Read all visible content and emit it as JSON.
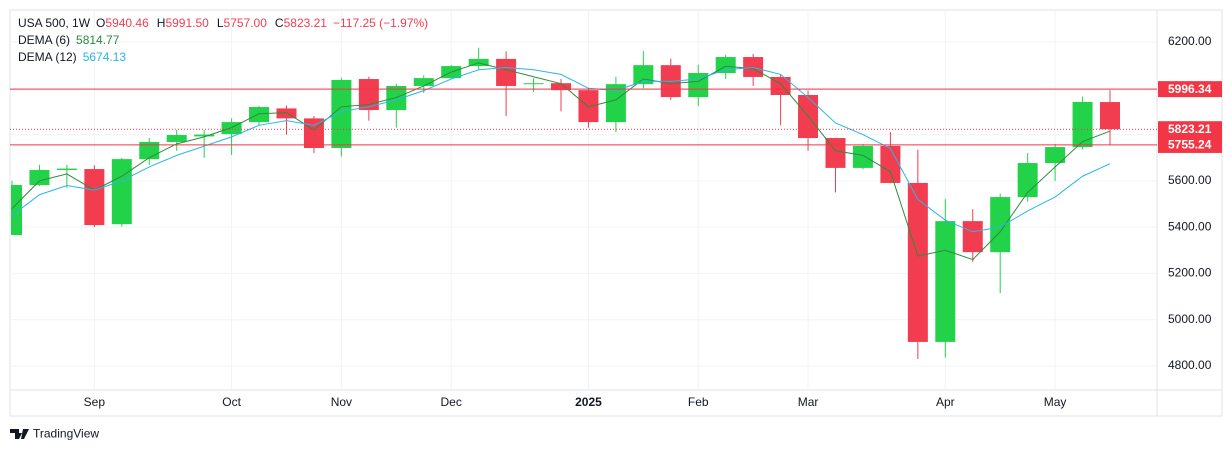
{
  "header": {
    "symbol": "USA 500, 1W",
    "ohlc": [
      {
        "key": "O",
        "text": "5940.46"
      },
      {
        "key": "H",
        "text": "5991.50"
      },
      {
        "key": "L",
        "text": "5757.00"
      },
      {
        "key": "C",
        "text": "5823.21"
      }
    ],
    "change": "−117.25 (−1.97%)"
  },
  "chart_data": {
    "type": "candlestick",
    "categories": [
      null,
      null,
      null,
      "Sep",
      null,
      null,
      null,
      null,
      "Oct",
      null,
      null,
      null,
      "Nov",
      null,
      null,
      null,
      "Dec",
      null,
      null,
      null,
      null,
      "2025",
      null,
      null,
      null,
      "Feb",
      null,
      null,
      null,
      "Mar",
      null,
      null,
      null,
      null,
      "Apr",
      null,
      null,
      null,
      "May",
      null,
      null
    ],
    "bold_categories": [
      "2025"
    ],
    "open": [
      5366,
      5582,
      5647,
      5651,
      5413,
      5694,
      5768,
      5792,
      5802,
      5854,
      5913,
      5870,
      5742,
      6040,
      5906,
      6010,
      6044,
      6096,
      6127,
      6018,
      6022,
      5992,
      5854,
      6018,
      6100,
      5962,
      6066,
      6135,
      6049,
      5971,
      5785,
      5656,
      5751,
      5591,
      4904,
      5426,
      5292,
      5530,
      5677,
      5746,
      5940.46
    ],
    "high": [
      5600,
      5669,
      5670,
      5668,
      5700,
      5785,
      5821,
      5820,
      5870,
      5925,
      5925,
      5880,
      6045,
      6050,
      6020,
      6056,
      6100,
      6175,
      6160,
      6044,
      6040,
      6000,
      6050,
      6161,
      6128,
      6102,
      6145,
      6148,
      6060,
      5990,
      5785,
      5760,
      5810,
      5735,
      5521,
      5478,
      5545,
      5720,
      5760,
      5964,
      5991.5
    ],
    "low": [
      5366,
      5578,
      5569,
      5400,
      5402,
      5669,
      5730,
      5700,
      5712,
      5840,
      5800,
      5720,
      5705,
      5860,
      5830,
      5980,
      6038,
      6080,
      5880,
      5984,
      5900,
      5830,
      5810,
      6000,
      5950,
      5923,
      6040,
      6010,
      5840,
      5730,
      5550,
      5650,
      5590,
      4830,
      4836,
      5250,
      5115,
      5510,
      5600,
      5736,
      5757
    ],
    "close": [
      5582,
      5647,
      5653,
      5409,
      5694,
      5768,
      5798,
      5800,
      5854,
      5919,
      5870,
      5742,
      6036,
      5906,
      6010,
      6044,
      6096,
      6127,
      6010,
      6022,
      5992,
      5854,
      6018,
      6100,
      5962,
      6066,
      6135,
      6049,
      5971,
      5785,
      5656,
      5751,
      5591,
      4904,
      5426,
      5292,
      5530,
      5677,
      5746,
      5941,
      5823.21
    ],
    "up_color": "#22d34a",
    "down_color": "#f23d50",
    "series": [
      {
        "name": "DEMA (6)",
        "color": "#2e8b3e",
        "values": [
          5480,
          5600,
          5630,
          5560,
          5620,
          5700,
          5760,
          5790,
          5830,
          5890,
          5895,
          5820,
          5920,
          5930,
          5960,
          6010,
          6070,
          6110,
          6080,
          6050,
          6020,
          5920,
          5950,
          6040,
          6020,
          6030,
          6095,
          6085,
          6020,
          5880,
          5730,
          5710,
          5640,
          5275,
          5300,
          5260,
          5380,
          5550,
          5660,
          5770,
          5814.77
        ]
      },
      {
        "name": "DEMA (12)",
        "color": "#29b6e8",
        "values": [
          5450,
          5540,
          5580,
          5560,
          5600,
          5660,
          5710,
          5750,
          5790,
          5840,
          5860,
          5840,
          5900,
          5920,
          5950,
          5990,
          6040,
          6080,
          6090,
          6080,
          6060,
          6000,
          5990,
          6030,
          6030,
          6040,
          6080,
          6090,
          6060,
          5960,
          5850,
          5800,
          5740,
          5520,
          5430,
          5380,
          5400,
          5470,
          5530,
          5620,
          5674.13
        ]
      }
    ],
    "price_lines": [
      {
        "value": 5996.34,
        "style": "solid"
      },
      {
        "value": 5823.21,
        "style": "dotted"
      },
      {
        "value": 5755.24,
        "style": "solid"
      }
    ],
    "price_line_color": "#f23645",
    "ylim": [
      4696.3,
      6338.3
    ],
    "yticks": [
      {
        "value": 4800,
        "label": "4800.00"
      },
      {
        "value": 5000,
        "label": "5000.00"
      },
      {
        "value": 5200,
        "label": "5200.00"
      },
      {
        "value": 5400,
        "label": "5400.00"
      },
      {
        "value": 5600,
        "label": "5600.00"
      },
      {
        "value": 5800,
        "label": "5800.00"
      },
      {
        "value": 6000,
        "label": "6000.00"
      },
      {
        "value": 6200,
        "label": "6200.00"
      }
    ],
    "grid": true
  },
  "footer": {
    "brand": "TradingView"
  }
}
